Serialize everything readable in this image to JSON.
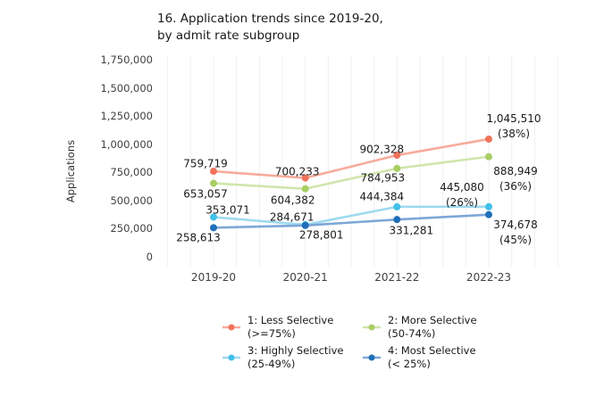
{
  "page": {
    "background": "#ffffff"
  },
  "chart_data": {
    "type": "line",
    "title_lines": [
      "16. Application trends since 2019-20,",
      "by admit rate subgroup"
    ],
    "ylabel": "Applications",
    "categories": [
      "2019-20",
      "2020-21",
      "2021-22",
      "2022-23"
    ],
    "ylim": [
      0,
      1750000
    ],
    "ytick_values": [
      0,
      250000,
      500000,
      750000,
      1000000,
      1250000,
      1500000,
      1750000
    ],
    "ytick_labels": [
      "0",
      "250,000",
      "500,000",
      "750,000",
      "1,000,000",
      "1,250,000",
      "1,500,000",
      "1,750,000"
    ],
    "grid": "faint vertical minor gridlines only",
    "gridline_color": "#f0f0f0",
    "legend_position": "bottom",
    "series": [
      {
        "name_lines": [
          "1: Less Selective",
          "(>=75%)"
        ],
        "marker_color": "#f0735a",
        "line_color": "#f8ab9b",
        "values": [
          759719,
          700233,
          902328,
          1045510
        ],
        "point_labels": [
          "759,719",
          "700,233",
          "902,328",
          "1,045,510"
        ],
        "final_pct_label": "(38%)"
      },
      {
        "name_lines": [
          "2: More Selective",
          "(50-74%)"
        ],
        "marker_color": "#a8ce64",
        "line_color": "#d0e5ac",
        "values": [
          653057,
          604382,
          784953,
          888949
        ],
        "point_labels": [
          "653,057",
          "604,382",
          "784,953",
          "888,949"
        ],
        "final_pct_label": "(36%)"
      },
      {
        "name_lines": [
          "3: Highly Selective",
          "(25-49%)"
        ],
        "marker_color": "#41c0e8",
        "line_color": "#9ed9f0",
        "values": [
          353071,
          284671,
          444384,
          445080
        ],
        "point_labels": [
          "353,071",
          "284,671",
          "444,384",
          "445,080"
        ],
        "final_pct_label": "(26%)"
      },
      {
        "name_lines": [
          "4: Most Selective",
          "(< 25%)"
        ],
        "marker_color": "#1e6fb9",
        "line_color": "#7da7d7",
        "values": [
          258613,
          278801,
          331281,
          374678
        ],
        "point_labels": [
          "258,613",
          "278,801",
          "331,281",
          "374,678"
        ],
        "final_pct_label": "(45%)"
      }
    ]
  }
}
